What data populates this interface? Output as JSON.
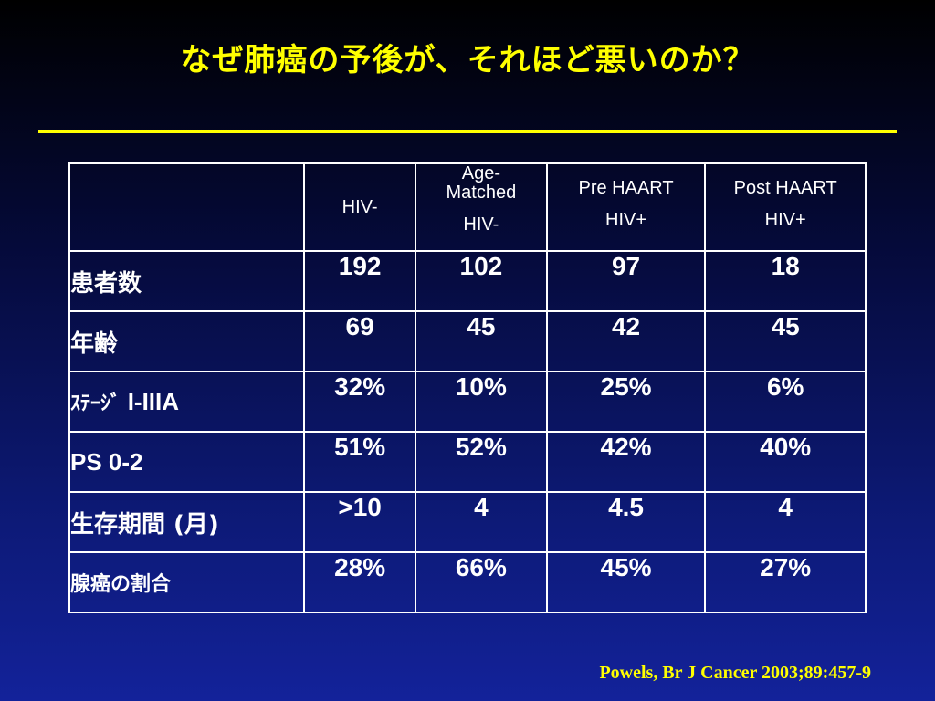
{
  "title": "なぜ肺癌の予後が、それほど悪いのか？",
  "colors": {
    "title": "#ffff00",
    "rule": "#ffff00",
    "text": "#ffffff",
    "citation": "#ffff00",
    "background_top": "#000000",
    "background_bottom": "#13229a"
  },
  "table": {
    "headers": {
      "hiv_neg": "HIV-",
      "age_matched": [
        "Age-",
        "Matched",
        "HIV-"
      ],
      "pre_haart": [
        "Pre HAART",
        "HIV+"
      ],
      "post_haart": [
        "Post HAART",
        "HIV+"
      ]
    },
    "rows": [
      {
        "label": "患者数",
        "values": [
          "192",
          "102",
          "97",
          "18"
        ]
      },
      {
        "label": "年齢",
        "values": [
          "69",
          "45",
          "42",
          "45"
        ]
      },
      {
        "label": "ｽﾃｰｼﾞ",
        "label_suffix": "I-IIIA",
        "values": [
          "32%",
          "10%",
          "25%",
          "6%"
        ]
      },
      {
        "label": "PS 0-2",
        "values": [
          "51%",
          "52%",
          "42%",
          "40%"
        ]
      },
      {
        "label": "生存期間 (月)",
        "values": [
          ">10",
          "4",
          "4.5",
          "4"
        ]
      },
      {
        "label": "腺癌の割合",
        "values": [
          "28%",
          "66%",
          "45%",
          "27%"
        ]
      }
    ]
  },
  "citation": "Powels, Br J Cancer 2003;89:457-9"
}
